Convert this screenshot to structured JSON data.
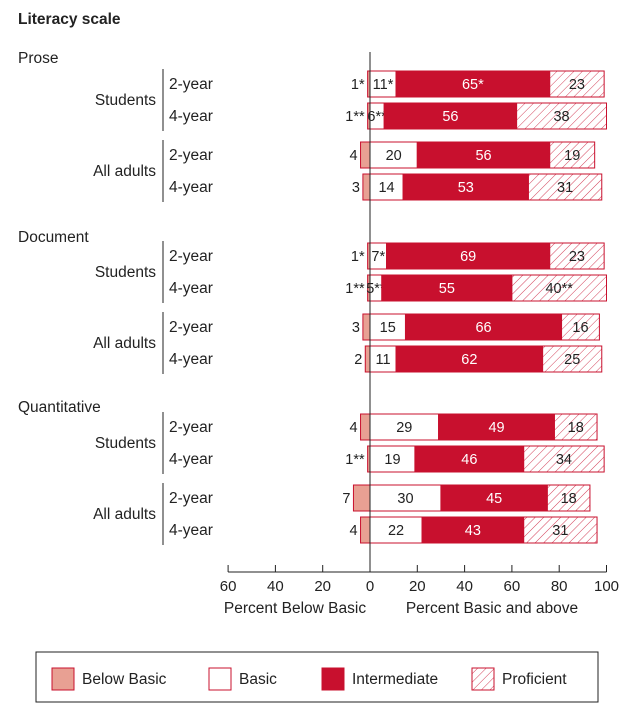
{
  "chart_data": {
    "type": "bar",
    "title": "Literacy scale",
    "xlabel_left": "Percent Below Basic",
    "xlabel_right": "Percent Basic and above",
    "xticks": [
      "60",
      "40",
      "20",
      "0",
      "20",
      "40",
      "60",
      "80",
      "100"
    ],
    "xlim": [
      -60,
      100
    ],
    "colors": {
      "below_basic": "#e8a093",
      "basic": "#ffffff",
      "intermediate": "#c8102e",
      "proficient": "#ffffff",
      "border": "#c8102e"
    },
    "legend": [
      {
        "key": "below_basic",
        "label": "Below Basic"
      },
      {
        "key": "basic",
        "label": "Basic"
      },
      {
        "key": "intermediate",
        "label": "Intermediate"
      },
      {
        "key": "proficient",
        "label": "Proficient"
      }
    ],
    "scales": [
      {
        "name": "Prose",
        "groups": [
          {
            "name": "Students",
            "rows": [
              {
                "label": "2-year",
                "below_basic": 1,
                "below_label": "1*",
                "basic": 11,
                "basic_label": "11*",
                "intermediate": 65,
                "intermediate_label": "65*",
                "proficient": 23,
                "proficient_label": "23"
              },
              {
                "label": "4-year",
                "below_basic": 1,
                "below_label": "1**",
                "basic": 6,
                "basic_label": "6**",
                "intermediate": 56,
                "intermediate_label": "56",
                "proficient": 38,
                "proficient_label": "38"
              }
            ]
          },
          {
            "name": "All adults",
            "rows": [
              {
                "label": "2-year",
                "below_basic": 4,
                "below_label": "4",
                "basic": 20,
                "basic_label": "20",
                "intermediate": 56,
                "intermediate_label": "56",
                "proficient": 19,
                "proficient_label": "19"
              },
              {
                "label": "4-year",
                "below_basic": 3,
                "below_label": "3",
                "basic": 14,
                "basic_label": "14",
                "intermediate": 53,
                "intermediate_label": "53",
                "proficient": 31,
                "proficient_label": "31"
              }
            ]
          }
        ]
      },
      {
        "name": "Document",
        "groups": [
          {
            "name": "Students",
            "rows": [
              {
                "label": "2-year",
                "below_basic": 1,
                "below_label": "1*",
                "basic": 7,
                "basic_label": "7*",
                "intermediate": 69,
                "intermediate_label": "69",
                "proficient": 23,
                "proficient_label": "23"
              },
              {
                "label": "4-year",
                "below_basic": 1,
                "below_label": "1**",
                "basic": 5,
                "basic_label": "5**",
                "intermediate": 55,
                "intermediate_label": "55",
                "proficient": 40,
                "proficient_label": "40**"
              }
            ]
          },
          {
            "name": "All adults",
            "rows": [
              {
                "label": "2-year",
                "below_basic": 3,
                "below_label": "3",
                "basic": 15,
                "basic_label": "15",
                "intermediate": 66,
                "intermediate_label": "66",
                "proficient": 16,
                "proficient_label": "16"
              },
              {
                "label": "4-year",
                "below_basic": 2,
                "below_label": "2",
                "basic": 11,
                "basic_label": "11",
                "intermediate": 62,
                "intermediate_label": "62",
                "proficient": 25,
                "proficient_label": "25"
              }
            ]
          }
        ]
      },
      {
        "name": "Quantitative",
        "groups": [
          {
            "name": "Students",
            "rows": [
              {
                "label": "2-year",
                "below_basic": 4,
                "below_label": "4",
                "basic": 29,
                "basic_label": "29",
                "intermediate": 49,
                "intermediate_label": "49",
                "proficient": 18,
                "proficient_label": "18"
              },
              {
                "label": "4-year",
                "below_basic": 1,
                "below_label": "1**",
                "basic": 19,
                "basic_label": "19",
                "intermediate": 46,
                "intermediate_label": "46",
                "proficient": 34,
                "proficient_label": "34"
              }
            ]
          },
          {
            "name": "All adults",
            "rows": [
              {
                "label": "2-year",
                "below_basic": 7,
                "below_label": "7",
                "basic": 30,
                "basic_label": "30",
                "intermediate": 45,
                "intermediate_label": "45",
                "proficient": 18,
                "proficient_label": "18"
              },
              {
                "label": "4-year",
                "below_basic": 4,
                "below_label": "4",
                "basic": 22,
                "basic_label": "22",
                "intermediate": 43,
                "intermediate_label": "43",
                "proficient": 31,
                "proficient_label": "31"
              }
            ]
          }
        ]
      }
    ]
  }
}
